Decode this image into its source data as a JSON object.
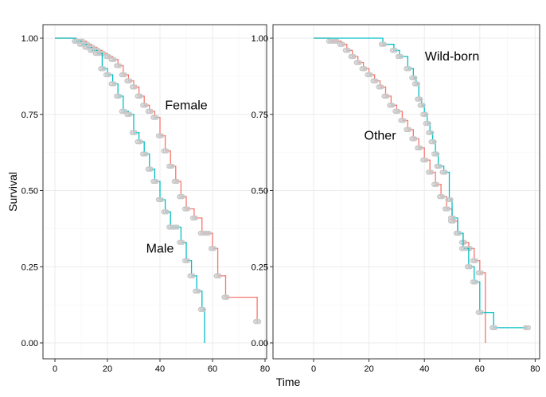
{
  "figure": {
    "xlabel": "Time",
    "ylabel": "Survival"
  },
  "chart_data": [
    {
      "type": "line",
      "step": true,
      "xlabel": "Time",
      "ylabel": "Survival",
      "xlim": [
        0,
        80
      ],
      "ylim": [
        0,
        1
      ],
      "xticks": [
        "0",
        "20",
        "40",
        "60",
        "80"
      ],
      "yticks": [
        "0.00",
        "0.25",
        "0.50",
        "0.75",
        "1.00"
      ],
      "grid": true,
      "annotations": [
        {
          "text": "Female",
          "x": 50,
          "y": 0.78
        },
        {
          "text": "Male",
          "x": 40,
          "y": 0.31
        }
      ],
      "series": [
        {
          "name": "Female",
          "color": "#F8766D",
          "x": [
            0,
            8,
            10,
            12,
            14,
            16,
            18,
            20,
            22,
            24,
            26,
            28,
            30,
            32,
            34,
            36,
            38,
            40,
            42,
            44,
            46,
            48,
            50,
            53,
            56,
            58,
            60,
            62,
            65,
            77
          ],
          "y": [
            1.0,
            0.99,
            0.99,
            0.98,
            0.97,
            0.96,
            0.95,
            0.94,
            0.93,
            0.91,
            0.88,
            0.86,
            0.84,
            0.81,
            0.78,
            0.76,
            0.74,
            0.68,
            0.63,
            0.58,
            0.53,
            0.48,
            0.44,
            0.41,
            0.36,
            0.36,
            0.31,
            0.22,
            0.15,
            0.07
          ]
        },
        {
          "name": "Male",
          "color": "#00BFC4",
          "x": [
            0,
            8,
            10,
            12,
            14,
            16,
            18,
            20,
            22,
            24,
            26,
            28,
            30,
            32,
            34,
            36,
            38,
            40,
            42,
            44,
            46,
            48,
            50,
            52,
            54,
            56,
            57
          ],
          "y": [
            1.0,
            0.99,
            0.98,
            0.97,
            0.96,
            0.95,
            0.9,
            0.88,
            0.85,
            0.81,
            0.76,
            0.75,
            0.69,
            0.66,
            0.62,
            0.57,
            0.53,
            0.47,
            0.43,
            0.38,
            0.38,
            0.33,
            0.27,
            0.22,
            0.17,
            0.11,
            0.0
          ]
        }
      ]
    },
    {
      "type": "line",
      "step": true,
      "xlabel": "Time",
      "ylabel": "Survival",
      "xlim": [
        0,
        80
      ],
      "ylim": [
        0,
        1
      ],
      "xticks": [
        "0",
        "20",
        "40",
        "60",
        "80"
      ],
      "yticks": [
        "0.00",
        "0.25",
        "0.50",
        "0.75",
        "1.00"
      ],
      "grid": true,
      "annotations": [
        {
          "text": "Wild-born",
          "x": 50,
          "y": 0.94
        },
        {
          "text": "Other",
          "x": 24,
          "y": 0.68
        }
      ],
      "series": [
        {
          "name": "Other",
          "color": "#F8766D",
          "x": [
            0,
            6,
            8,
            10,
            12,
            14,
            16,
            18,
            20,
            22,
            24,
            26,
            28,
            30,
            32,
            34,
            36,
            38,
            40,
            42,
            44,
            46,
            48,
            50,
            52,
            54,
            56,
            58,
            60,
            62
          ],
          "y": [
            1.0,
            0.99,
            0.99,
            0.98,
            0.96,
            0.94,
            0.92,
            0.9,
            0.88,
            0.86,
            0.84,
            0.81,
            0.78,
            0.76,
            0.73,
            0.7,
            0.67,
            0.64,
            0.6,
            0.56,
            0.52,
            0.48,
            0.44,
            0.4,
            0.36,
            0.33,
            0.31,
            0.27,
            0.23,
            0.0
          ]
        },
        {
          "name": "Wild-born",
          "color": "#00BFC4",
          "x": [
            0,
            25,
            29,
            31,
            34,
            36,
            37,
            38,
            39,
            40,
            41,
            42,
            43,
            44,
            45,
            47,
            49,
            50,
            52,
            54,
            56,
            58,
            60,
            65,
            77
          ],
          "y": [
            1.0,
            0.98,
            0.96,
            0.94,
            0.9,
            0.87,
            0.85,
            0.8,
            0.78,
            0.75,
            0.72,
            0.69,
            0.66,
            0.62,
            0.58,
            0.56,
            0.47,
            0.41,
            0.36,
            0.31,
            0.25,
            0.2,
            0.1,
            0.05,
            0.05
          ]
        }
      ]
    }
  ]
}
